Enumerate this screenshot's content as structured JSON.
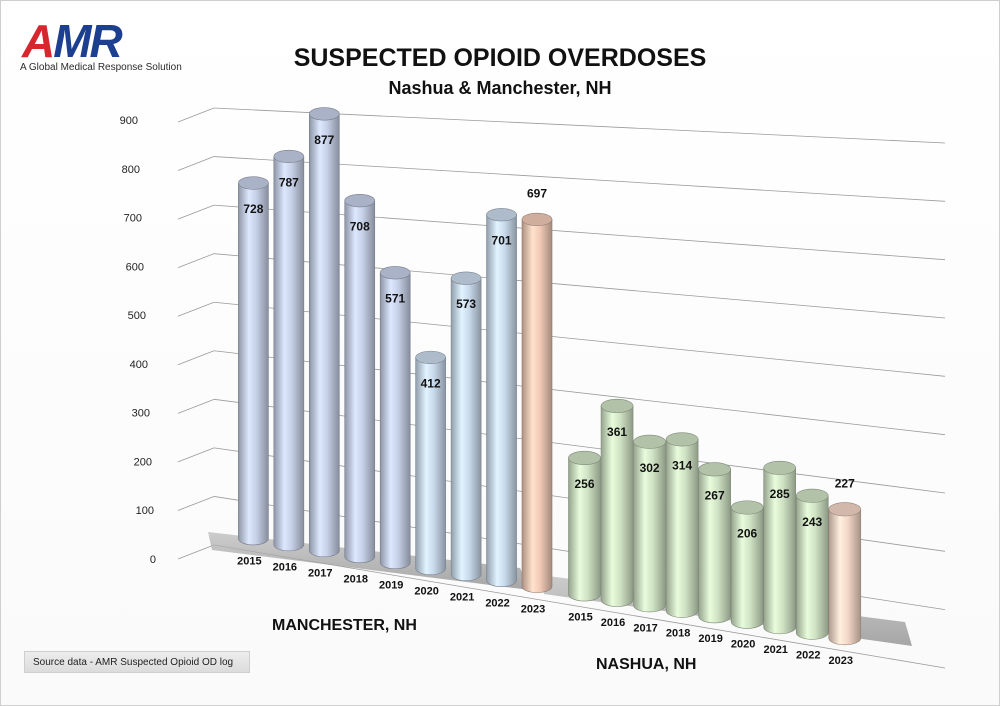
{
  "logo": {
    "wordmark": "AMR",
    "tagline": "A Global Medical Response Solution",
    "colors": {
      "red": "#d7262e",
      "blue": "#1d3f8f"
    }
  },
  "source_note": "Source data - AMR Suspected Opioid OD log",
  "chart_data": {
    "type": "bar",
    "title": "SUSPECTED OPIOID OVERDOSES",
    "subtitle": "Nashua & Manchester, NH",
    "y_ticks": [
      0,
      100,
      200,
      300,
      400,
      500,
      600,
      700,
      800,
      900
    ],
    "ylim": [
      0,
      900
    ],
    "grid": true,
    "style": "3d-cylinder",
    "groups": [
      {
        "name": "MANCHESTER, NH",
        "categories": [
          "2015",
          "2016",
          "2017",
          "2018",
          "2019",
          "2020",
          "2021",
          "2022",
          "2023"
        ],
        "values": [
          728,
          787,
          877,
          708,
          571,
          412,
          573,
          701,
          697
        ],
        "colors": [
          "#c5cfe6",
          "#c5cfe6",
          "#c5cfe6",
          "#c5cfe6",
          "#c5cfe6",
          "#c9daec",
          "#c9daec",
          "#c9daec",
          "#f1cab6"
        ]
      },
      {
        "name": "NASHUA, NH",
        "categories": [
          "2015",
          "2016",
          "2017",
          "2018",
          "2019",
          "2020",
          "2021",
          "2022",
          "2023"
        ],
        "values": [
          256,
          361,
          302,
          314,
          267,
          206,
          285,
          243,
          227
        ],
        "colors": [
          "#cfe2c4",
          "#cfe2c4",
          "#cfe2c4",
          "#cfe2c4",
          "#cfe2c4",
          "#cfe2c4",
          "#cfe2c4",
          "#cfe2c4",
          "#f3d6c6"
        ]
      }
    ]
  }
}
